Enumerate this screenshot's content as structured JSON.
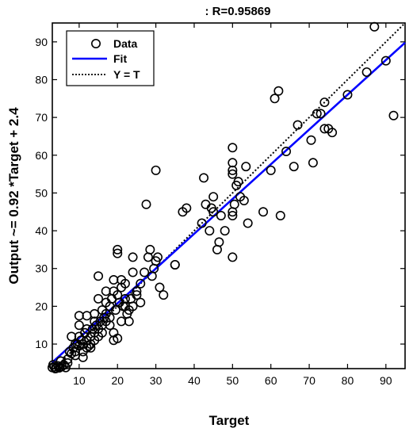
{
  "chart_data": {
    "type": "scatter",
    "title": ": R=0.95869",
    "xlabel": "Target",
    "ylabel": "Output ~= 0.92 *Target + 2.4",
    "xlim": [
      3,
      95
    ],
    "ylim": [
      3.5,
      95
    ],
    "xticks": [
      10,
      20,
      30,
      40,
      50,
      60,
      70,
      80,
      90
    ],
    "yticks": [
      10,
      20,
      30,
      40,
      50,
      60,
      70,
      80,
      90
    ],
    "grid": false,
    "legend_position": "top-left",
    "legend": [
      {
        "label": "Data",
        "style": "circle-marker"
      },
      {
        "label": "Fit",
        "style": "solid-line"
      },
      {
        "label": "Y = T",
        "style": "dotted-line"
      }
    ],
    "colors": {
      "data": "#000000",
      "fit": "#0000ff",
      "identity": "#000000"
    },
    "fit": {
      "slope": 0.92,
      "intercept": 2.4
    },
    "points": [
      [
        3,
        3.8
      ],
      [
        3.5,
        4
      ],
      [
        4,
        3.6
      ],
      [
        4.5,
        4.2
      ],
      [
        5,
        3.9
      ],
      [
        3.2,
        4.5
      ],
      [
        4.8,
        3.7
      ],
      [
        5.5,
        4.1
      ],
      [
        3.8,
        3.5
      ],
      [
        6,
        4.5
      ],
      [
        6.5,
        3.8
      ],
      [
        5.2,
        5.5
      ],
      [
        7,
        6
      ],
      [
        7.5,
        8
      ],
      [
        8,
        7.5
      ],
      [
        8.5,
        9
      ],
      [
        9,
        8
      ],
      [
        9.5,
        10
      ],
      [
        10,
        9.5
      ],
      [
        10.5,
        11
      ],
      [
        10,
        12
      ],
      [
        11,
        10
      ],
      [
        11.5,
        13
      ],
      [
        12,
        11
      ],
      [
        12.5,
        9.5
      ],
      [
        13,
        12
      ],
      [
        13.5,
        14
      ],
      [
        14,
        13
      ],
      [
        14.5,
        15
      ],
      [
        15,
        14
      ],
      [
        15.5,
        16
      ],
      [
        16,
        15
      ],
      [
        16.5,
        17
      ],
      [
        17,
        16
      ],
      [
        9,
        10
      ],
      [
        8,
        12
      ],
      [
        10,
        15
      ],
      [
        10,
        17.5
      ],
      [
        12,
        17.5
      ],
      [
        14,
        18
      ],
      [
        11,
        6.5
      ],
      [
        12,
        9
      ],
      [
        13,
        10
      ],
      [
        15,
        12
      ],
      [
        16,
        19
      ],
      [
        17,
        21
      ],
      [
        18,
        20
      ],
      [
        18.5,
        22
      ],
      [
        19,
        24
      ],
      [
        19.5,
        19
      ],
      [
        20,
        23
      ],
      [
        20.5,
        21
      ],
      [
        21,
        25
      ],
      [
        21.5,
        20
      ],
      [
        22,
        26
      ],
      [
        22.5,
        18
      ],
      [
        23,
        19
      ],
      [
        23.5,
        22
      ],
      [
        24,
        20
      ],
      [
        24,
        33
      ],
      [
        20,
        35
      ],
      [
        20,
        34
      ],
      [
        15,
        28
      ],
      [
        17,
        24
      ],
      [
        18,
        15
      ],
      [
        19,
        13
      ],
      [
        20,
        11.5
      ],
      [
        21,
        16
      ],
      [
        22,
        20
      ],
      [
        24,
        29
      ],
      [
        25,
        23
      ],
      [
        26,
        26
      ],
      [
        27,
        29
      ],
      [
        28,
        33
      ],
      [
        28.5,
        35
      ],
      [
        29,
        28
      ],
      [
        29.5,
        30
      ],
      [
        30,
        32
      ],
      [
        30.5,
        33
      ],
      [
        31,
        25
      ],
      [
        32,
        23
      ],
      [
        30,
        56
      ],
      [
        27.5,
        47
      ],
      [
        35,
        31
      ],
      [
        37,
        45
      ],
      [
        38,
        46
      ],
      [
        42,
        42
      ],
      [
        43,
        47
      ],
      [
        44,
        40
      ],
      [
        44.5,
        46
      ],
      [
        45,
        49
      ],
      [
        46,
        35
      ],
      [
        46.5,
        37
      ],
      [
        47,
        44
      ],
      [
        48,
        40
      ],
      [
        42.5,
        54
      ],
      [
        45,
        45
      ],
      [
        50,
        33
      ],
      [
        50,
        44
      ],
      [
        50,
        45
      ],
      [
        50.5,
        47
      ],
      [
        51,
        52
      ],
      [
        51.5,
        53
      ],
      [
        52,
        49
      ],
      [
        53,
        48
      ],
      [
        53.5,
        57
      ],
      [
        54,
        42
      ],
      [
        50,
        62
      ],
      [
        50,
        58
      ],
      [
        50,
        56
      ],
      [
        50,
        55
      ],
      [
        58,
        45
      ],
      [
        60,
        56
      ],
      [
        61,
        75
      ],
      [
        62,
        77
      ],
      [
        62.5,
        44
      ],
      [
        64,
        61
      ],
      [
        66,
        57
      ],
      [
        67,
        68
      ],
      [
        70.5,
        64
      ],
      [
        71,
        58
      ],
      [
        72,
        71
      ],
      [
        73,
        71
      ],
      [
        74,
        74
      ],
      [
        74,
        67
      ],
      [
        75,
        67
      ],
      [
        76,
        66
      ],
      [
        80,
        76
      ],
      [
        85,
        82
      ],
      [
        87,
        94
      ],
      [
        90,
        85
      ],
      [
        92,
        70.5
      ],
      [
        7,
        5
      ],
      [
        9,
        7
      ],
      [
        11,
        8
      ],
      [
        13,
        9
      ],
      [
        19,
        11
      ],
      [
        16,
        13
      ],
      [
        14,
        11
      ],
      [
        12,
        14
      ],
      [
        18,
        17
      ],
      [
        22,
        22
      ],
      [
        25,
        24
      ],
      [
        15,
        22
      ],
      [
        17,
        18
      ],
      [
        21,
        27
      ],
      [
        23,
        16
      ],
      [
        14,
        16
      ],
      [
        26,
        21
      ],
      [
        19,
        27
      ],
      [
        35,
        31
      ]
    ]
  }
}
